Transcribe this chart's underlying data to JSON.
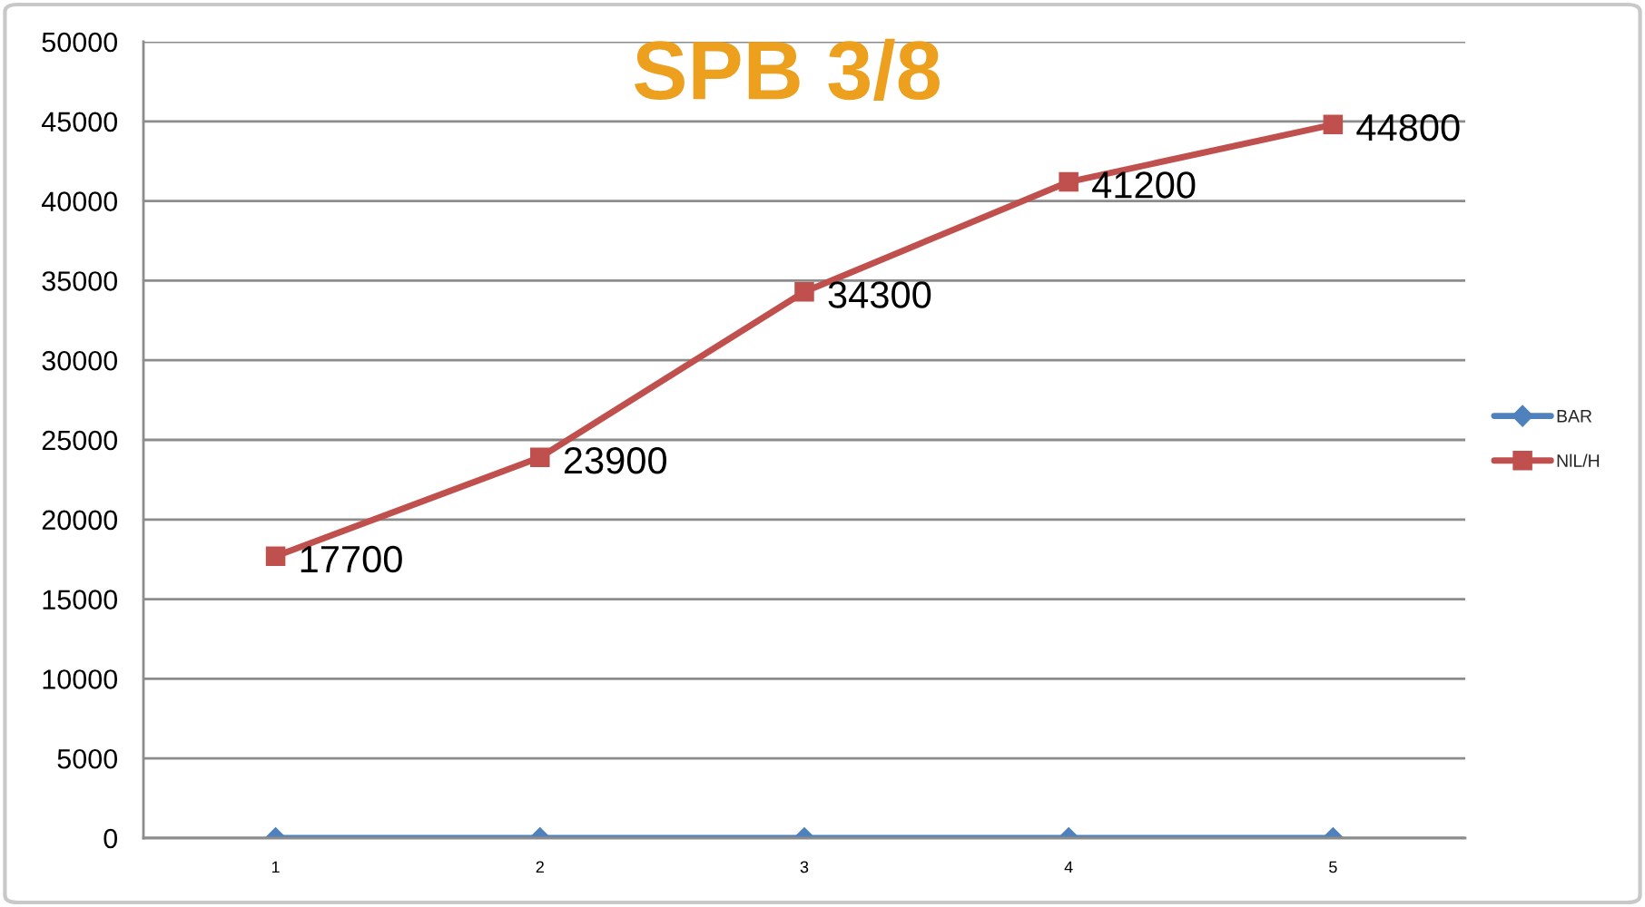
{
  "chart_data": {
    "type": "line",
    "title": "SPB 3/8",
    "categories": [
      "1",
      "2",
      "3",
      "4",
      "5"
    ],
    "series": [
      {
        "name": "BAR",
        "color": "#4f81bd",
        "marker": "diamond",
        "values": [
          0,
          0,
          0,
          0,
          0
        ]
      },
      {
        "name": "NlL/H",
        "color": "#c0504d",
        "marker": "square",
        "values": [
          17700,
          23900,
          34300,
          41200,
          44800
        ],
        "value_labels": [
          "17700",
          "23900",
          "34300",
          "41200",
          "44800"
        ]
      }
    ],
    "ylim": [
      0,
      50000
    ],
    "yticks": [
      0,
      5000,
      10000,
      15000,
      20000,
      25000,
      30000,
      35000,
      40000,
      45000,
      50000
    ],
    "grid": "y",
    "legend": "right",
    "line_style": "solid"
  }
}
